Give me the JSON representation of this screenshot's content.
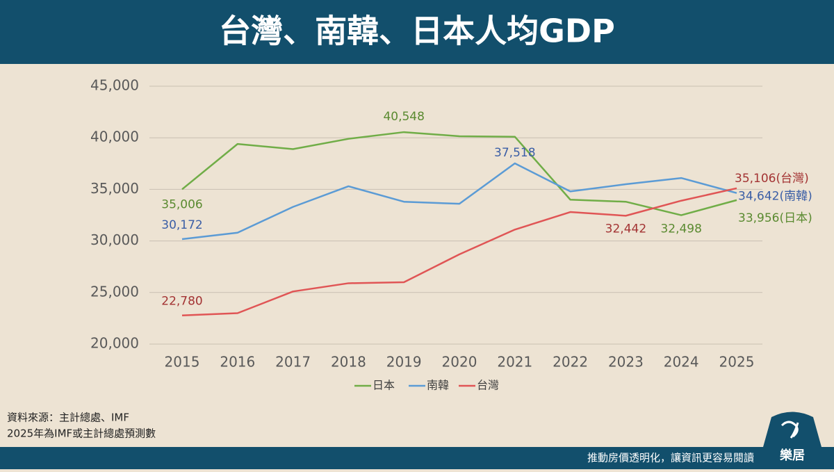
{
  "chart_data": {
    "type": "line",
    "title": "台灣、南韓、日本人均GDP",
    "categories": [
      "2015",
      "2016",
      "2017",
      "2018",
      "2019",
      "2020",
      "2021",
      "2022",
      "2023",
      "2024",
      "2025"
    ],
    "series": [
      {
        "name": "日本",
        "color": "#70ad47",
        "label_color": "#5a8a30",
        "values": [
          35006,
          39400,
          38900,
          39900,
          40548,
          40150,
          40100,
          34000,
          33800,
          32498,
          33956
        ],
        "value_labels": [
          "35,006",
          null,
          null,
          null,
          "40,548",
          null,
          null,
          null,
          null,
          "32,498",
          "33,956(日本)"
        ]
      },
      {
        "name": "南韓",
        "color": "#5b9bd5",
        "label_color": "#3a5ea6",
        "values": [
          30172,
          30800,
          33300,
          35300,
          33800,
          33600,
          37518,
          34800,
          35500,
          36100,
          34642
        ],
        "value_labels": [
          "30,172",
          null,
          null,
          null,
          null,
          null,
          "37,518",
          null,
          null,
          null,
          "34,642(南韓)"
        ]
      },
      {
        "name": "台灣",
        "color": "#e05555",
        "label_color": "#a33333",
        "values": [
          22780,
          23000,
          25100,
          25900,
          26000,
          28700,
          31100,
          32800,
          32442,
          33900,
          35106
        ],
        "value_labels": [
          "22,780",
          null,
          null,
          null,
          null,
          null,
          null,
          null,
          "32,442",
          null,
          "35,106(台灣)"
        ]
      }
    ],
    "ylim": [
      20000,
      45000
    ],
    "yticks": [
      {
        "value": 20000,
        "label": "20,000"
      },
      {
        "value": 25000,
        "label": "25,000"
      },
      {
        "value": 30000,
        "label": "30,000"
      },
      {
        "value": 35000,
        "label": "35,000"
      },
      {
        "value": 40000,
        "label": "40,000"
      },
      {
        "value": 45000,
        "label": "45,000"
      }
    ],
    "grid": true
  },
  "source": "資料來源：主計總處、IMF",
  "note": "2025年為IMF或主計總處預測數",
  "footer": "推動房價透明化，讓資訊更容易閱讀",
  "brand": "樂居"
}
